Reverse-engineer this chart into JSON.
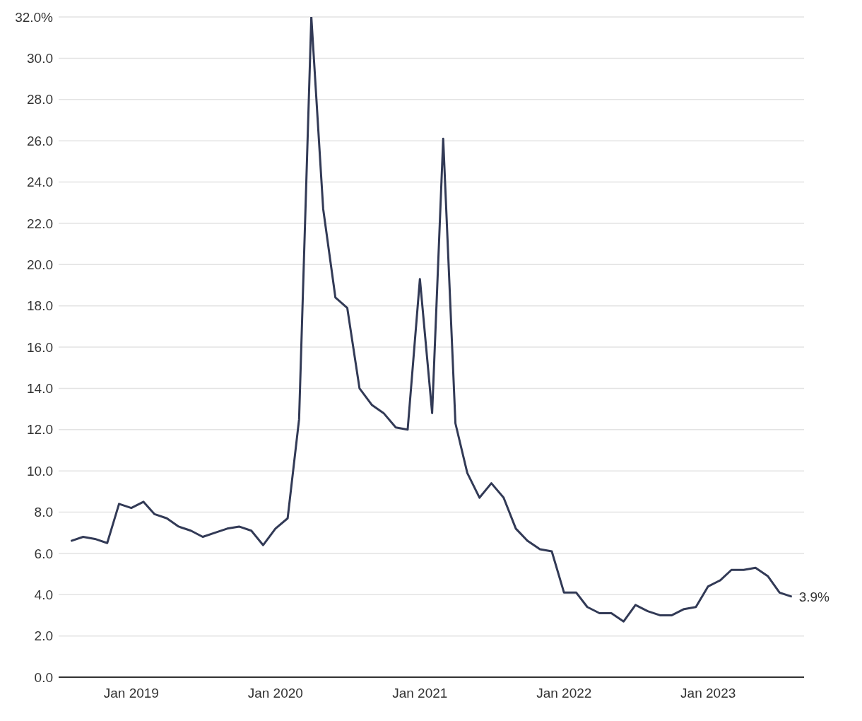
{
  "chart_data": {
    "type": "line",
    "x": [
      "2018-08",
      "2018-09",
      "2018-10",
      "2018-11",
      "2018-12",
      "2019-01",
      "2019-02",
      "2019-03",
      "2019-04",
      "2019-05",
      "2019-06",
      "2019-07",
      "2019-08",
      "2019-09",
      "2019-10",
      "2019-11",
      "2019-12",
      "2020-01",
      "2020-02",
      "2020-03",
      "2020-04",
      "2020-05",
      "2020-06",
      "2020-07",
      "2020-08",
      "2020-09",
      "2020-10",
      "2020-11",
      "2020-12",
      "2021-01",
      "2021-02",
      "2021-03",
      "2021-04",
      "2021-05",
      "2021-06",
      "2021-07",
      "2021-08",
      "2021-09",
      "2021-10",
      "2021-11",
      "2021-12",
      "2022-01",
      "2022-02",
      "2022-03",
      "2022-04",
      "2022-05",
      "2022-06",
      "2022-07",
      "2022-08",
      "2022-09",
      "2022-10",
      "2022-11",
      "2022-12",
      "2023-01",
      "2023-02",
      "2023-03",
      "2023-04",
      "2023-05",
      "2023-06",
      "2023-07",
      "2023-08"
    ],
    "series": [
      {
        "color": "#323a56",
        "values": [
          6.6,
          6.8,
          6.7,
          6.5,
          8.4,
          8.2,
          8.5,
          7.9,
          7.7,
          7.3,
          7.1,
          6.8,
          7.0,
          7.2,
          7.3,
          7.1,
          6.4,
          7.2,
          7.7,
          12.5,
          32.0,
          22.7,
          18.4,
          17.9,
          14.0,
          13.2,
          12.8,
          12.1,
          12.0,
          19.3,
          12.8,
          26.1,
          12.3,
          9.9,
          8.7,
          9.4,
          8.7,
          7.2,
          6.6,
          6.2,
          6.1,
          4.1,
          4.1,
          3.4,
          3.1,
          3.1,
          2.7,
          3.5,
          3.2,
          3.0,
          3.0,
          3.3,
          3.4,
          4.4,
          4.7,
          5.2,
          5.2,
          5.3,
          4.9,
          4.1,
          3.9
        ],
        "value_labels": [
          null,
          null,
          null,
          null,
          null,
          null,
          null,
          null,
          null,
          null,
          null,
          null,
          null,
          null,
          null,
          null,
          null,
          null,
          null,
          null,
          null,
          null,
          null,
          null,
          null,
          null,
          null,
          null,
          null,
          null,
          null,
          null,
          null,
          null,
          null,
          null,
          null,
          null,
          null,
          null,
          null,
          null,
          null,
          null,
          null,
          null,
          null,
          null,
          null,
          null,
          null,
          null,
          null,
          null,
          null,
          null,
          null,
          null,
          null,
          null,
          "3.9%"
        ]
      }
    ],
    "xlim": [
      "2018-07",
      "2023-09"
    ],
    "xticks": [
      {
        "value": "2019-01",
        "label": "Jan 2019"
      },
      {
        "value": "2020-01",
        "label": "Jan 2020"
      },
      {
        "value": "2021-01",
        "label": "Jan 2021"
      },
      {
        "value": "2022-01",
        "label": "Jan 2022"
      },
      {
        "value": "2023-01",
        "label": "Jan 2023"
      }
    ],
    "ylim": [
      0,
      32
    ],
    "yticks": [
      {
        "value": 0,
        "label": "0.0"
      },
      {
        "value": 2,
        "label": "2.0"
      },
      {
        "value": 4,
        "label": "4.0"
      },
      {
        "value": 6,
        "label": "6.0"
      },
      {
        "value": 8,
        "label": "8.0"
      },
      {
        "value": 10,
        "label": "10.0"
      },
      {
        "value": 12,
        "label": "12.0"
      },
      {
        "value": 14,
        "label": "14.0"
      },
      {
        "value": 16,
        "label": "16.0"
      },
      {
        "value": 18,
        "label": "18.0"
      },
      {
        "value": 20,
        "label": "20.0"
      },
      {
        "value": 22,
        "label": "22.0"
      },
      {
        "value": 24,
        "label": "24.0"
      },
      {
        "value": 26,
        "label": "26.0"
      },
      {
        "value": 28,
        "label": "28.0"
      },
      {
        "value": 30,
        "label": "30.0"
      },
      {
        "value": 32,
        "label": "32.0%"
      }
    ],
    "grid": "y",
    "legend": false,
    "marker": "none",
    "line_style": "solid"
  }
}
